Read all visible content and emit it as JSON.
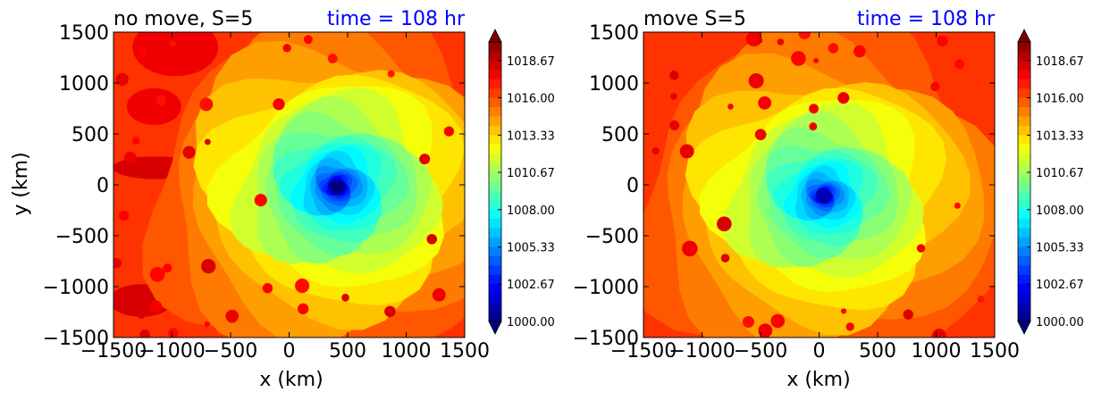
{
  "chart_data": [
    {
      "type": "heatmap",
      "title_left": "no move, S=5",
      "title_right": "time = 108 hr",
      "xlabel": "x (km)",
      "ylabel": "y (km)",
      "xlim": [
        -1500,
        1500
      ],
      "ylim": [
        -1500,
        1500
      ],
      "xticks": [
        "−1500",
        "−1000",
        "−500",
        "0",
        "500",
        "1000",
        "1500"
      ],
      "yticks": [
        "1500",
        "1000",
        "500",
        "0",
        "−500",
        "−1000",
        "−1500"
      ],
      "center": [
        410,
        -20
      ],
      "background_level": 1016.5,
      "min_level": 1000.0,
      "colorbar": {
        "ticks": [
          "1018.67",
          "1016.00",
          "1013.33",
          "1010.67",
          "1008.00",
          "1005.33",
          "1002.67",
          "1000.00"
        ],
        "range": [
          1000,
          1020
        ]
      }
    },
    {
      "type": "heatmap",
      "title_left": "move S=5",
      "title_right": "time = 108 hr",
      "xlabel": "x (km)",
      "ylabel": "",
      "xlim": [
        -1500,
        1500
      ],
      "ylim": [
        -1500,
        1500
      ],
      "xticks": [
        "−1500",
        "−1000",
        "−500",
        "0",
        "500",
        "1000",
        "1500"
      ],
      "yticks": [
        "1500",
        "1000",
        "500",
        "0",
        "−500",
        "−1000",
        "−1500"
      ],
      "center": [
        40,
        -110
      ],
      "background_level": 1016.5,
      "min_level": 1001.0,
      "colorbar": {
        "ticks": [
          "1018.67",
          "1016.00",
          "1013.33",
          "1010.67",
          "1008.00",
          "1005.33",
          "1002.67",
          "1000.00"
        ],
        "range": [
          1000,
          1020
        ]
      }
    }
  ]
}
